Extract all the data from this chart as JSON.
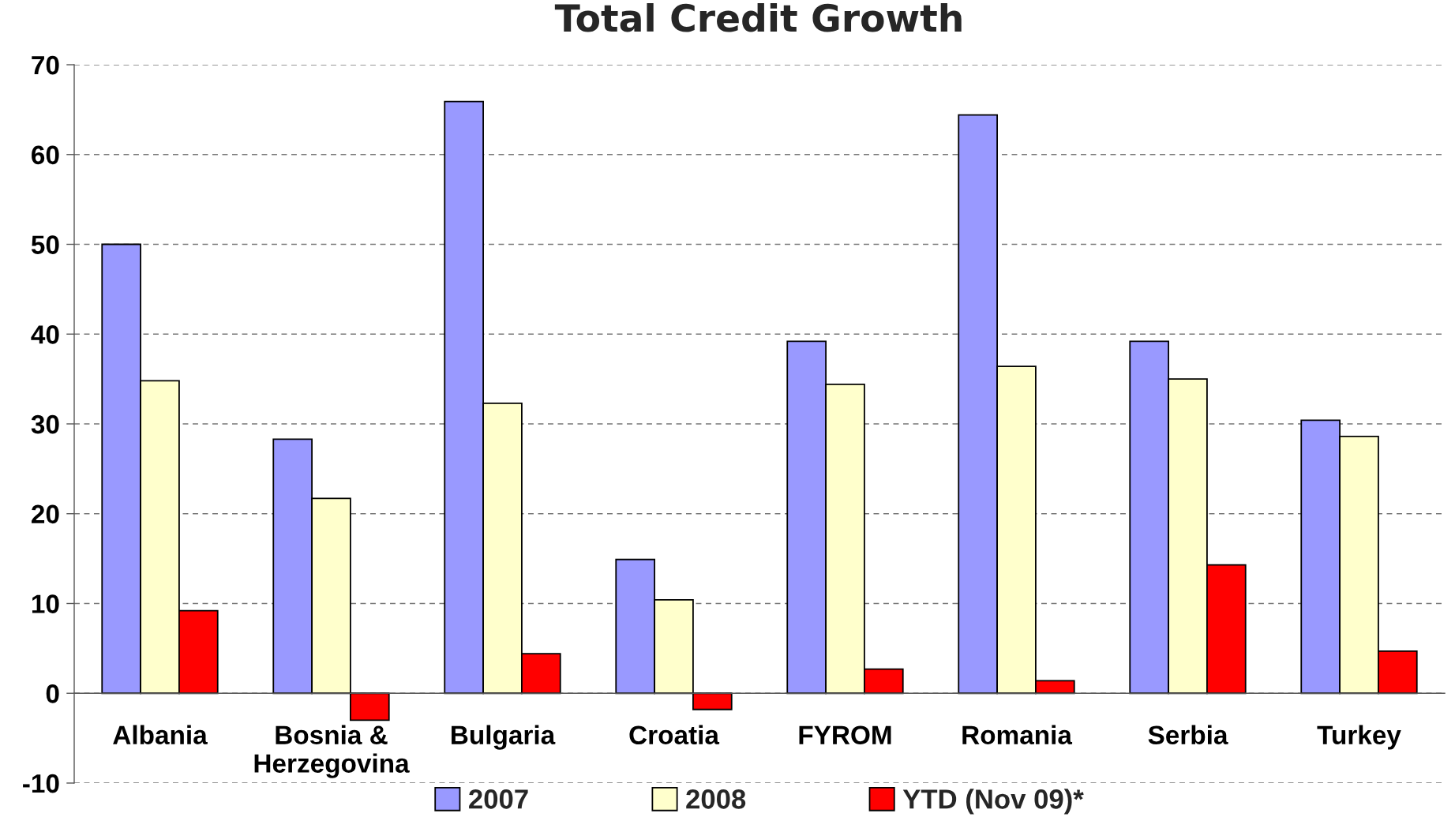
{
  "chart_data": {
    "type": "bar",
    "title": "Total Credit Growth",
    "categories": [
      "Albania",
      "Bosnia & Herzegovina",
      "Bulgaria",
      "Croatia",
      "FYROM",
      "Romania",
      "Serbia",
      "Turkey"
    ],
    "series": [
      {
        "name": "2007",
        "color": "#9999ff",
        "values": [
          50.0,
          28.3,
          65.9,
          14.9,
          39.2,
          64.4,
          39.2,
          30.4
        ]
      },
      {
        "name": "2008",
        "color": "#ffffcc",
        "values": [
          34.8,
          21.7,
          32.3,
          10.4,
          34.4,
          36.4,
          35.0,
          28.6
        ]
      },
      {
        "name": "YTD (Nov 09)*",
        "color": "#ff0000",
        "values": [
          9.2,
          -3.0,
          4.4,
          -1.8,
          2.7,
          1.4,
          14.3,
          4.7
        ]
      }
    ],
    "ylim": [
      -10,
      70
    ],
    "yticks": [
      -10,
      0,
      10,
      20,
      30,
      40,
      50,
      60,
      70
    ],
    "grid": "y",
    "legend": "bottom"
  }
}
